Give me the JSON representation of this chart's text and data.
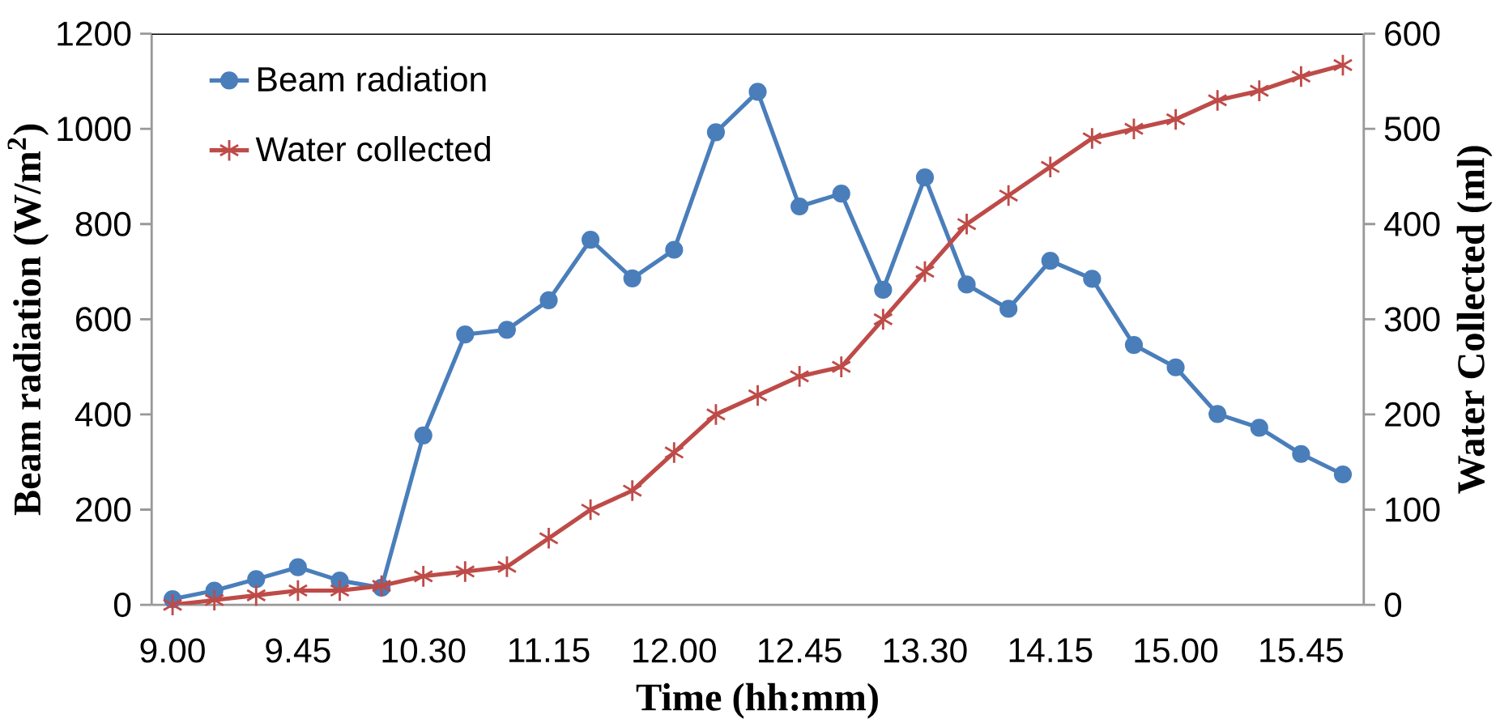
{
  "chart_data": {
    "type": "line",
    "xlabel": "Time (hh:mm)",
    "ylabel": "Beam radiation (W/m$^{2}$)",
    "y2label": "Water Collected (ml)",
    "categories": [
      "9.00",
      null,
      null,
      "9.45",
      null,
      null,
      "10.30",
      null,
      null,
      "11.15",
      null,
      null,
      "12.00",
      null,
      null,
      "12.45",
      null,
      null,
      "13.30",
      null,
      null,
      "14.15",
      null,
      null,
      "15.00",
      null,
      null,
      "15.45",
      null
    ],
    "series": [
      {
        "name": "Beam radiation",
        "color": "#4a7ebb",
        "marker": "circle",
        "values": [
          12,
          30,
          54,
          79,
          51,
          36,
          356,
          568,
          578,
          640,
          767,
          686,
          746,
          993,
          1078,
          837,
          864,
          662,
          898,
          673,
          622,
          723,
          685,
          546,
          499,
          401,
          372,
          317,
          274
        ]
      },
      {
        "name": "Water collected",
        "color": "#be4b48",
        "marker": "cross",
        "axis": "y2",
        "values": [
          0,
          5,
          10,
          15,
          15,
          20,
          30,
          35,
          40,
          70,
          100,
          120,
          160,
          200,
          220,
          240,
          250,
          300,
          350,
          400,
          430,
          460,
          490,
          500,
          510,
          530,
          540,
          555,
          567
        ]
      }
    ],
    "ylim": [
      0,
      1200
    ],
    "yticks": [
      0,
      200,
      400,
      600,
      800,
      1000,
      1200
    ],
    "y2lim": [
      0,
      600
    ],
    "y2ticks": [
      0,
      100,
      200,
      300,
      400,
      500,
      600
    ],
    "legend": "top left",
    "grid": false
  }
}
